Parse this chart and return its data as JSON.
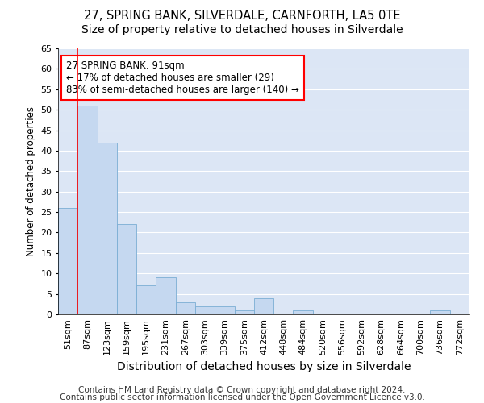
{
  "title1": "27, SPRING BANK, SILVERDALE, CARNFORTH, LA5 0TE",
  "title2": "Size of property relative to detached houses in Silverdale",
  "xlabel": "Distribution of detached houses by size in Silverdale",
  "ylabel": "Number of detached properties",
  "categories": [
    "51sqm",
    "87sqm",
    "123sqm",
    "159sqm",
    "195sqm",
    "231sqm",
    "267sqm",
    "303sqm",
    "339sqm",
    "375sqm",
    "412sqm",
    "448sqm",
    "484sqm",
    "520sqm",
    "556sqm",
    "592sqm",
    "628sqm",
    "664sqm",
    "700sqm",
    "736sqm",
    "772sqm"
  ],
  "values": [
    26,
    51,
    42,
    22,
    7,
    9,
    3,
    2,
    2,
    1,
    4,
    0,
    1,
    0,
    0,
    0,
    0,
    0,
    0,
    1,
    0
  ],
  "bar_color": "#c5d8f0",
  "bar_edge_color": "#7aadd4",
  "bg_color": "#dce6f5",
  "grid_color": "#ffffff",
  "annotation_box_text": "27 SPRING BANK: 91sqm\n← 17% of detached houses are smaller (29)\n83% of semi-detached houses are larger (140) →",
  "annotation_box_color": "white",
  "annotation_box_edge_color": "red",
  "vline_color": "red",
  "vline_x_index": 1,
  "ylim": [
    0,
    65
  ],
  "yticks": [
    0,
    5,
    10,
    15,
    20,
    25,
    30,
    35,
    40,
    45,
    50,
    55,
    60,
    65
  ],
  "footnote1": "Contains HM Land Registry data © Crown copyright and database right 2024.",
  "footnote2": "Contains public sector information licensed under the Open Government Licence v3.0.",
  "title1_fontsize": 10.5,
  "title2_fontsize": 10,
  "xlabel_fontsize": 10,
  "ylabel_fontsize": 8.5,
  "tick_fontsize": 8,
  "annot_fontsize": 8.5,
  "footnote_fontsize": 7.5
}
